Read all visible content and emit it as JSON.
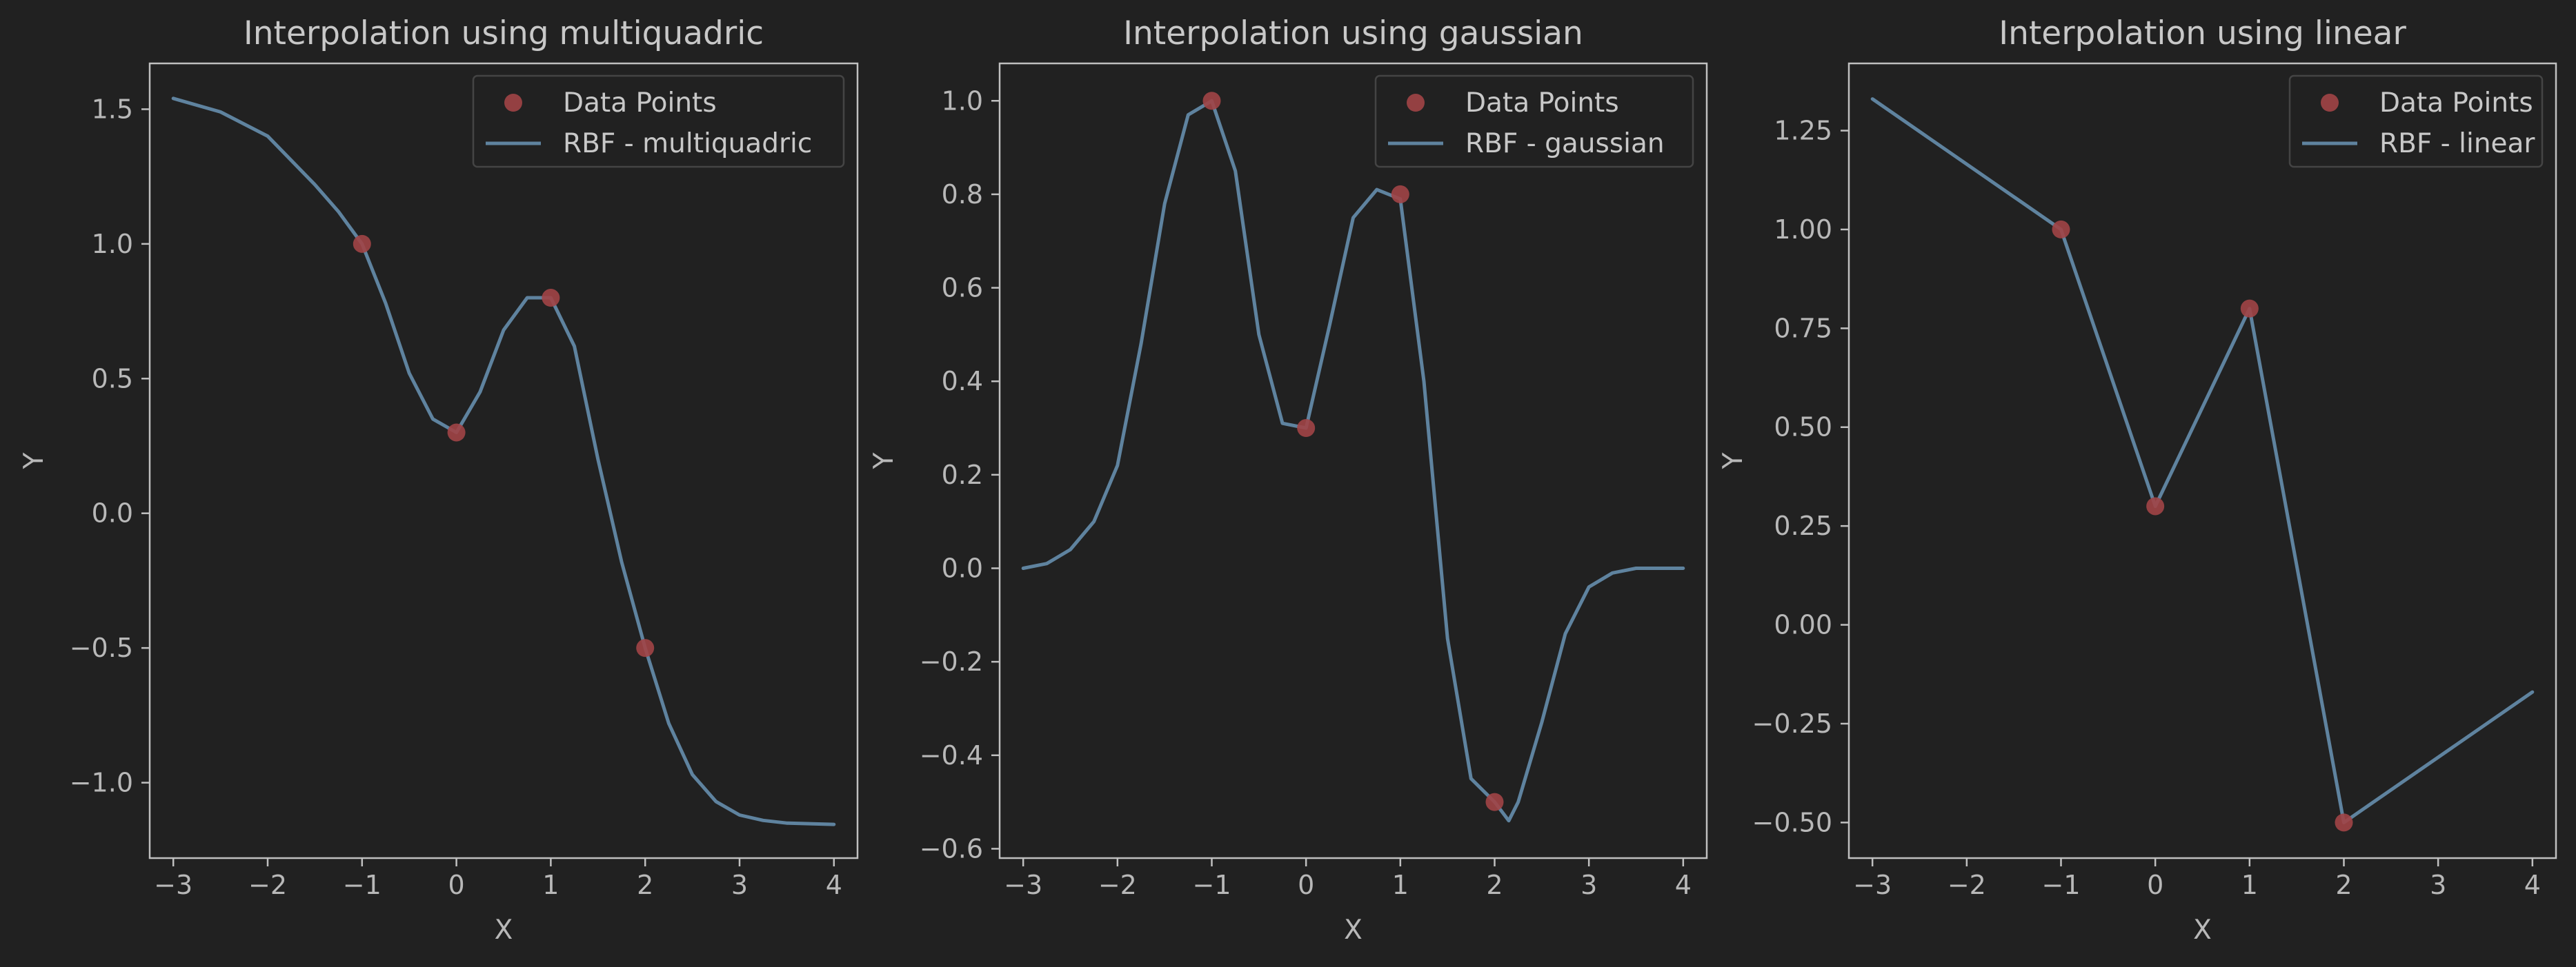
{
  "colors": {
    "background": "#212121",
    "axes_edge": "#c0c0c0",
    "text": "#c8c8c8",
    "line": "#5f839f",
    "points": "#a14446",
    "legend_frame": "#444444"
  },
  "chart_data": [
    {
      "type": "line",
      "title": "Interpolation using multiquadric",
      "xlabel": "X",
      "ylabel": "Y",
      "xlim": [
        -3.25,
        4.25
      ],
      "ylim": [
        -1.28,
        1.67
      ],
      "xticks": [
        -3,
        -2,
        -1,
        0,
        1,
        2,
        3,
        4
      ],
      "xtick_labels": [
        "−3",
        "−2",
        "−1",
        "0",
        "1",
        "2",
        "3",
        "4"
      ],
      "yticks": [
        -1.0,
        -0.5,
        0.0,
        0.5,
        1.0,
        1.5
      ],
      "ytick_labels": [
        "−1.0",
        "−0.5",
        "0.0",
        "0.5",
        "1.0",
        "1.5"
      ],
      "grid": false,
      "legend_position": "top-right",
      "points": {
        "name": "Data Points",
        "x": [
          -1,
          0,
          1,
          2
        ],
        "y": [
          1.0,
          0.3,
          0.8,
          -0.5
        ]
      },
      "curve": {
        "name": "RBF - multiquadric",
        "x": [
          -3,
          -2.5,
          -2,
          -1.5,
          -1.25,
          -1,
          -0.75,
          -0.5,
          -0.25,
          0,
          0.25,
          0.5,
          0.75,
          1,
          1.25,
          1.5,
          1.75,
          2,
          2.25,
          2.5,
          2.75,
          3,
          3.25,
          3.5,
          4
        ],
        "y": [
          1.54,
          1.49,
          1.4,
          1.22,
          1.12,
          1.0,
          0.78,
          0.52,
          0.35,
          0.3,
          0.45,
          0.68,
          0.8,
          0.8,
          0.62,
          0.2,
          -0.18,
          -0.5,
          -0.78,
          -0.97,
          -1.07,
          -1.12,
          -1.14,
          -1.15,
          -1.155
        ]
      }
    },
    {
      "type": "line",
      "title": "Interpolation using gaussian",
      "xlabel": "X",
      "ylabel": "Y",
      "xlim": [
        -3.25,
        4.25
      ],
      "ylim": [
        -0.62,
        1.08
      ],
      "xticks": [
        -3,
        -2,
        -1,
        0,
        1,
        2,
        3,
        4
      ],
      "xtick_labels": [
        "−3",
        "−2",
        "−1",
        "0",
        "1",
        "2",
        "3",
        "4"
      ],
      "yticks": [
        -0.6,
        -0.4,
        -0.2,
        0.0,
        0.2,
        0.4,
        0.6,
        0.8,
        1.0
      ],
      "ytick_labels": [
        "−0.6",
        "−0.4",
        "−0.2",
        "0.0",
        "0.2",
        "0.4",
        "0.6",
        "0.8",
        "1.0"
      ],
      "grid": false,
      "legend_position": "top-right",
      "points": {
        "name": "Data Points",
        "x": [
          -1,
          0,
          1,
          2
        ],
        "y": [
          1.0,
          0.3,
          0.8,
          -0.5
        ]
      },
      "curve": {
        "name": "RBF - gaussian",
        "x": [
          -3,
          -2.75,
          -2.5,
          -2.25,
          -2,
          -1.75,
          -1.5,
          -1.25,
          -1,
          -0.75,
          -0.5,
          -0.25,
          0,
          0.25,
          0.5,
          0.75,
          1,
          1.25,
          1.5,
          1.75,
          2,
          2.15,
          2.25,
          2.5,
          2.75,
          3,
          3.25,
          3.5,
          4
        ],
        "y": [
          0.0,
          0.01,
          0.04,
          0.1,
          0.22,
          0.48,
          0.78,
          0.97,
          1.0,
          0.85,
          0.5,
          0.31,
          0.3,
          0.52,
          0.75,
          0.81,
          0.79,
          0.4,
          -0.15,
          -0.45,
          -0.5,
          -0.54,
          -0.5,
          -0.33,
          -0.14,
          -0.04,
          -0.01,
          0.0,
          0.0
        ]
      }
    },
    {
      "type": "line",
      "title": "Interpolation using linear",
      "xlabel": "X",
      "ylabel": "Y",
      "xlim": [
        -3.25,
        4.25
      ],
      "ylim": [
        -0.59,
        1.42
      ],
      "xticks": [
        -3,
        -2,
        -1,
        0,
        1,
        2,
        3,
        4
      ],
      "xtick_labels": [
        "−3",
        "−2",
        "−1",
        "0",
        "1",
        "2",
        "3",
        "4"
      ],
      "yticks": [
        -0.5,
        -0.25,
        0.0,
        0.25,
        0.5,
        0.75,
        1.0,
        1.25
      ],
      "ytick_labels": [
        "−0.50",
        "−0.25",
        "0.00",
        "0.25",
        "0.50",
        "0.75",
        "1.00",
        "1.25"
      ],
      "grid": false,
      "legend_position": "top-right",
      "points": {
        "name": "Data Points",
        "x": [
          -1,
          0,
          1,
          2
        ],
        "y": [
          1.0,
          0.3,
          0.8,
          -0.5
        ]
      },
      "curve": {
        "name": "RBF - linear",
        "x": [
          -3,
          -1,
          0,
          1,
          2,
          4
        ],
        "y": [
          1.33,
          1.0,
          0.3,
          0.8,
          -0.5,
          -0.17
        ]
      }
    }
  ]
}
